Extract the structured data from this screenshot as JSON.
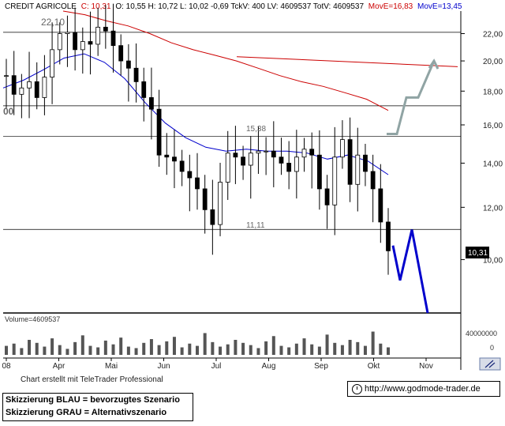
{
  "header": {
    "name": "CREDIT AGRICOLE",
    "close_text": "C: 10,31",
    "ohl_text": "O: 10,55 H: 10,72 L: 10,02 -0,69 TckV: 400 LV: 4609537 TotV: 4609537",
    "movE1_text": "MovE=16,83",
    "movE2_text": "MovE=13,45"
  },
  "annotations": {
    "high": "22,10",
    "left_cut": "00",
    "level_upper": "15,38",
    "level_lower": "11,11",
    "last_price": "10,31"
  },
  "volume_label": "Volume=4609537",
  "volume_axis": [
    "40000000",
    "0"
  ],
  "footer": {
    "credit": "Chart erstellt mit TeleTrader Professional",
    "legend_blue": "Skizzierung BLAU = bevorzugtes Szenario",
    "legend_grey": "Skizzierung GRAU = Alternativszenario",
    "source": "http://www.godmode-trader.de"
  },
  "colors": {
    "price": "#000000",
    "movE1": "#cc0000",
    "movE2": "#0000cc",
    "scenario_blue": "#0000cc",
    "scenario_grey": "#90a4a4",
    "grid": "#000000",
    "header_red": "#cc0000",
    "header_blue": "#0000cc"
  },
  "chart_data": {
    "type": "candlestick",
    "title": "CREDIT AGRICOLE",
    "y_scale": "log",
    "ylim": [
      8.3,
      23.8
    ],
    "y_ticks": [
      "22,00",
      "20,00",
      "18,00",
      "16,00",
      "14,00",
      "12,00",
      "10,00"
    ],
    "x_labels": [
      "08",
      "Apr",
      "Mai",
      "Jun",
      "Jul",
      "Aug",
      "Sep",
      "Okt",
      "Nov"
    ],
    "horizontal_levels": [
      22.1,
      17.1,
      15.38,
      11.11
    ],
    "price_series": {
      "name": "",
      "points": [
        [
          "Mar",
          19.0
        ],
        [
          "Mar",
          17.8
        ],
        [
          "Mar",
          18.2
        ],
        [
          "Mar",
          18.6
        ],
        [
          "Mar",
          17.6
        ],
        [
          "Mar",
          18.9
        ],
        [
          "Apr",
          20.8
        ],
        [
          "Apr",
          22.0
        ],
        [
          "Apr",
          22.1
        ],
        [
          "Apr",
          20.8
        ],
        [
          "Apr",
          21.4
        ],
        [
          "Apr",
          21.2
        ],
        [
          "Mai",
          22.5
        ],
        [
          "Mai",
          22.2
        ],
        [
          "Mai",
          21.1
        ],
        [
          "Mai",
          20.0
        ],
        [
          "Mai",
          19.5
        ],
        [
          "Mai",
          18.6
        ],
        [
          "Mai",
          17.6
        ],
        [
          "Jun",
          16.9
        ],
        [
          "Jun",
          14.4
        ],
        [
          "Jun",
          14.3
        ],
        [
          "Jun",
          14.1
        ],
        [
          "Jun",
          13.6
        ],
        [
          "Jul",
          13.3
        ],
        [
          "Jul",
          12.8
        ],
        [
          "Jul",
          11.9
        ],
        [
          "Jul",
          11.3
        ],
        [
          "Jul",
          13.1
        ],
        [
          "Jul",
          14.5
        ],
        [
          "Aug",
          14.3
        ],
        [
          "Aug",
          13.9
        ],
        [
          "Aug",
          14.5
        ],
        [
          "Aug",
          14.6
        ],
        [
          "Aug",
          14.6
        ],
        [
          "Aug",
          14.3
        ],
        [
          "Aug",
          14.0
        ],
        [
          "Sep",
          13.6
        ],
        [
          "Sep",
          14.3
        ],
        [
          "Sep",
          14.7
        ],
        [
          "Sep",
          14.4
        ],
        [
          "Sep",
          12.8
        ],
        [
          "Sep",
          12.1
        ],
        [
          "Okt",
          14.3
        ],
        [
          "Okt",
          15.2
        ],
        [
          "Okt",
          13.0
        ],
        [
          "Okt",
          14.4
        ],
        [
          "Okt",
          13.6
        ],
        [
          "Okt",
          12.8
        ],
        [
          "Okt",
          11.4
        ],
        [
          "Okt",
          10.31
        ]
      ]
    },
    "series": [
      {
        "name": "MovE",
        "value_label": "16,83",
        "values": [
          23.8,
          23.5,
          23.0,
          22.6,
          22.0,
          21.3,
          20.8,
          20.4,
          20.0,
          19.5,
          19.0,
          18.6,
          18.3,
          17.9,
          17.5,
          16.83
        ]
      },
      {
        "name": "MovE",
        "value_label": "13,45",
        "values": [
          18.2,
          18.7,
          19.4,
          20.2,
          20.5,
          19.9,
          18.8,
          17.3,
          16.1,
          15.3,
          14.8,
          14.6,
          14.7,
          14.6,
          14.6,
          14.5,
          14.2,
          14.4,
          14.1,
          13.45
        ]
      }
    ],
    "scenarios": [
      {
        "name": "blau",
        "points": [
          10.5,
          9.3,
          11.1,
          8.3
        ]
      },
      {
        "name": "grau",
        "points": [
          15.5,
          15.5,
          17.6,
          17.6,
          20.0
        ]
      }
    ],
    "volume": [
      1.2,
      1.5,
      0.9,
      2.0,
      1.6,
      1.1,
      2.2,
      1.3,
      0.8,
      1.7,
      2.6,
      1.2,
      1.0,
      1.9,
      1.4,
      2.3,
      1.1,
      0.9,
      1.6,
      2.1,
      1.3,
      1.8,
      2.4,
      1.0,
      1.5,
      1.2,
      2.9,
      1.7,
      1.1,
      1.4,
      2.0,
      1.6,
      1.3,
      0.9,
      1.8,
      2.5,
      1.2,
      1.0,
      1.5,
      2.2,
      1.4,
      1.1,
      2.7,
      1.6,
      1.3,
      2.0,
      1.7,
      1.2,
      3.1,
      1.5,
      1.0
    ]
  }
}
